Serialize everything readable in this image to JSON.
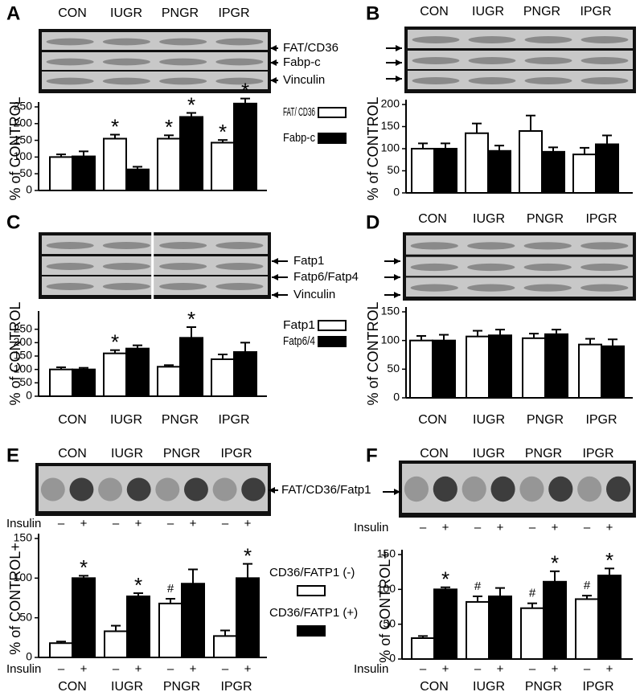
{
  "chart_data": [
    {
      "type": "bar",
      "panel": "A",
      "ylabel": "% of CONTROL",
      "categories": [
        "CON",
        "IUGR",
        "PNGR",
        "IPGR"
      ],
      "blot_labels": [
        "FAT/CD36",
        "Fabp-c",
        "Vinculin"
      ],
      "series": [
        {
          "name": "FAT/ CD36",
          "color": "#ffffff",
          "values": [
            100,
            155,
            155,
            143
          ],
          "errors": [
            8,
            12,
            10,
            8
          ]
        },
        {
          "name": "Fabp-c",
          "color": "#000000",
          "values": [
            102,
            63,
            220,
            260
          ],
          "errors": [
            15,
            8,
            12,
            15
          ]
        }
      ],
      "annotations": [
        {
          "text": "*",
          "series": 0,
          "index": 1
        },
        {
          "text": "*",
          "series": 0,
          "index": 2
        },
        {
          "text": "*",
          "series": 1,
          "index": 2
        },
        {
          "text": "*",
          "series": 0,
          "index": 3
        },
        {
          "text": "*",
          "series": 1,
          "index": 3
        }
      ],
      "ylim": [
        0,
        250
      ],
      "yticks": [
        0,
        50,
        100,
        150,
        200,
        250
      ]
    },
    {
      "type": "bar",
      "panel": "B",
      "ylabel": "% of CONTROL",
      "categories": [
        "CON",
        "IUGR",
        "PNGR",
        "IPGR"
      ],
      "series": [
        {
          "color": "#ffffff",
          "values": [
            100,
            135,
            140,
            87
          ],
          "errors": [
            12,
            22,
            35,
            15
          ]
        },
        {
          "color": "#000000",
          "values": [
            100,
            95,
            93,
            110
          ],
          "errors": [
            12,
            12,
            10,
            20
          ]
        }
      ],
      "ylim": [
        0,
        200
      ],
      "yticks": [
        0,
        50,
        100,
        150,
        200
      ]
    },
    {
      "type": "bar",
      "panel": "C",
      "ylabel": "% of CONTROL",
      "categories": [
        "CON",
        "IUGR",
        "PNGR",
        "IPGR"
      ],
      "blot_labels": [
        "Fatp1",
        "Fatp6/Fatp4",
        "Vinculin"
      ],
      "series": [
        {
          "name": "Fatp1",
          "color": "#ffffff",
          "values": [
            100,
            160,
            110,
            138
          ],
          "errors": [
            8,
            12,
            6,
            18
          ]
        },
        {
          "name": "Fatp6/4",
          "color": "#000000",
          "values": [
            100,
            178,
            218,
            165
          ],
          "errors": [
            6,
            12,
            40,
            35
          ]
        }
      ],
      "annotations": [
        {
          "text": "*",
          "series": 0,
          "index": 1
        },
        {
          "text": "*",
          "series": 1,
          "index": 2
        }
      ],
      "ylim": [
        0,
        300
      ],
      "yticks": [
        0,
        50,
        100,
        150,
        200,
        250
      ]
    },
    {
      "type": "bar",
      "panel": "D",
      "ylabel": "% of CONTROL",
      "categories": [
        "CON",
        "IUGR",
        "PNGR",
        "IPGR"
      ],
      "series": [
        {
          "color": "#ffffff",
          "values": [
            100,
            107,
            104,
            93
          ],
          "errors": [
            8,
            10,
            8,
            10
          ]
        },
        {
          "color": "#000000",
          "values": [
            100,
            109,
            111,
            90
          ],
          "errors": [
            10,
            10,
            8,
            12
          ]
        }
      ],
      "ylim": [
        0,
        150
      ],
      "yticks": [
        0,
        50,
        100,
        150
      ]
    },
    {
      "type": "bar",
      "panel": "E",
      "ylabel": "% of CONTROL+",
      "categories": [
        "CON",
        "IUGR",
        "PNGR",
        "IPGR"
      ],
      "blot_labels": [
        "FAT/CD36/Fatp1"
      ],
      "insulin": {
        "label": "Insulin",
        "signs": [
          "–",
          "+",
          "–",
          "+",
          "–",
          "+",
          "–",
          "+"
        ]
      },
      "series": [
        {
          "name": "CD36/FATP1 (-)",
          "color": "#ffffff",
          "values": [
            18,
            33,
            68,
            27
          ],
          "errors": [
            2,
            7,
            6,
            7
          ]
        },
        {
          "name": "CD36/FATP1 (+)",
          "color": "#000000",
          "values": [
            100,
            77,
            93,
            100
          ],
          "errors": [
            3,
            4,
            18,
            18
          ]
        }
      ],
      "annotations": [
        {
          "text": "*",
          "series": 1,
          "index": 0
        },
        {
          "text": "*",
          "series": 1,
          "index": 1
        },
        {
          "text": "#",
          "series": 0,
          "index": 2
        },
        {
          "text": "*",
          "series": 1,
          "index": 3
        }
      ],
      "ylim": [
        0,
        150
      ],
      "yticks": [
        0,
        50,
        100,
        150
      ]
    },
    {
      "type": "bar",
      "panel": "F",
      "ylabel": "% of CONTROL+",
      "categories": [
        "CON",
        "IUGR",
        "PNGR",
        "IPGR"
      ],
      "insulin": {
        "label": "Insulin",
        "signs": [
          "–",
          "+",
          "–",
          "+",
          "–",
          "+",
          "–",
          "+"
        ]
      },
      "series": [
        {
          "color": "#ffffff",
          "values": [
            30,
            82,
            73,
            86
          ],
          "errors": [
            3,
            8,
            7,
            5
          ]
        },
        {
          "color": "#000000",
          "values": [
            100,
            90,
            111,
            120
          ],
          "errors": [
            3,
            12,
            15,
            10
          ]
        }
      ],
      "annotations": [
        {
          "text": "*",
          "series": 1,
          "index": 0
        },
        {
          "text": "#",
          "series": 0,
          "index": 1
        },
        {
          "text": "#",
          "series": 0,
          "index": 2
        },
        {
          "text": "*",
          "series": 1,
          "index": 2
        },
        {
          "text": "#",
          "series": 0,
          "index": 3
        },
        {
          "text": "*",
          "series": 1,
          "index": 3
        }
      ],
      "ylim": [
        0,
        150
      ],
      "yticks": [
        0,
        50,
        100,
        150
      ]
    }
  ]
}
